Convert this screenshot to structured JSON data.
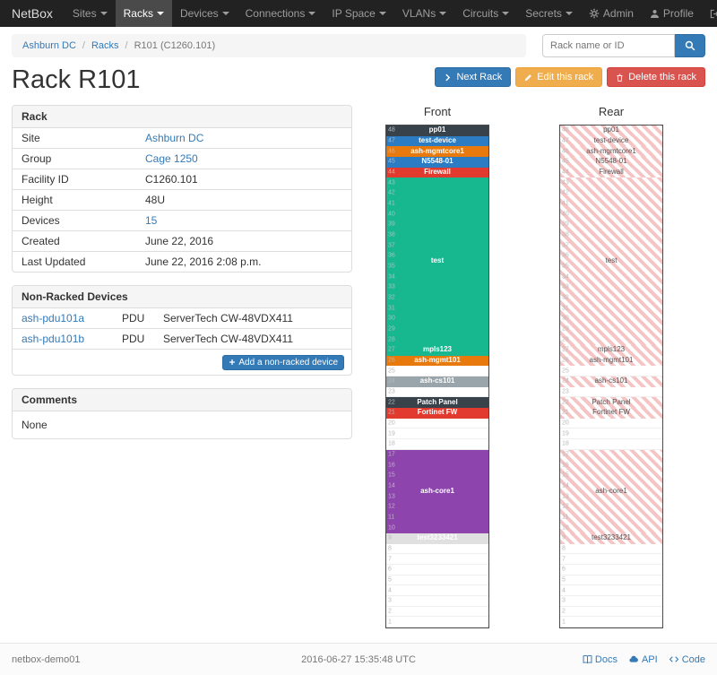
{
  "navbar": {
    "brand": "NetBox",
    "items": [
      {
        "label": "Sites"
      },
      {
        "label": "Racks",
        "active": true
      },
      {
        "label": "Devices"
      },
      {
        "label": "Connections"
      },
      {
        "label": "IP Space"
      },
      {
        "label": "VLANs"
      },
      {
        "label": "Circuits"
      },
      {
        "label": "Secrets"
      }
    ],
    "right_items": [
      {
        "label": "Admin",
        "icon": "gear"
      },
      {
        "label": "Profile",
        "icon": "user"
      },
      {
        "label": "Log out",
        "icon": "logout"
      }
    ]
  },
  "breadcrumb": [
    {
      "label": "Ashburn DC",
      "link": true
    },
    {
      "label": "Racks",
      "link": true
    },
    {
      "label": "R101 (C1260.101)",
      "link": false
    }
  ],
  "search": {
    "placeholder": "Rack name or ID"
  },
  "actions": {
    "next_rack": "Next Rack",
    "edit_rack": "Edit this rack",
    "delete_rack": "Delete this rack"
  },
  "page": {
    "title": "Rack R101"
  },
  "rack_info": {
    "title": "Rack",
    "rows": [
      {
        "label": "Site",
        "value": "Ashburn DC",
        "link": true
      },
      {
        "label": "Group",
        "value": "Cage 1250",
        "link": true
      },
      {
        "label": "Facility ID",
        "value": "C1260.101"
      },
      {
        "label": "Height",
        "value": "48U"
      },
      {
        "label": "Devices",
        "value": "15",
        "link": true
      },
      {
        "label": "Created",
        "value": "June 22, 2016"
      },
      {
        "label": "Last Updated",
        "value": "June 22, 2016 2:08 p.m."
      }
    ]
  },
  "non_racked": {
    "title": "Non-Racked Devices",
    "rows": [
      {
        "name": "ash-pdu101a",
        "type": "PDU",
        "model": "ServerTech CW-48VDX411"
      },
      {
        "name": "ash-pdu101b",
        "type": "PDU",
        "model": "ServerTech CW-48VDX411"
      }
    ],
    "add_button": "Add a non-racked device"
  },
  "comments": {
    "title": "Comments",
    "body": "None"
  },
  "elevation": {
    "front_title": "Front",
    "rear_title": "Rear",
    "units_total": 48,
    "devices": [
      {
        "top_u": 48,
        "span": 1,
        "label": "pp01",
        "color": "#38424b"
      },
      {
        "top_u": 47,
        "span": 1,
        "label": "test-device",
        "color": "#2c7cc4"
      },
      {
        "top_u": 46,
        "span": 1,
        "label": "ash-mgmtcore1",
        "color": "#e8790c"
      },
      {
        "top_u": 45,
        "span": 1,
        "label": "N5548-01",
        "color": "#2c7cc4"
      },
      {
        "top_u": 44,
        "span": 1,
        "label": "Firewall",
        "color": "#e23a2e"
      },
      {
        "top_u": 43,
        "span": 16,
        "label": "test",
        "color": "#17b890"
      },
      {
        "top_u": 27,
        "span": 1,
        "label": "mpls123",
        "color": "#17b890"
      },
      {
        "top_u": 26,
        "span": 1,
        "label": "ash-mgmt101",
        "color": "#e8790c"
      },
      {
        "top_u": 24,
        "span": 1,
        "label": "ash-cs101",
        "color": "#9aa5ab"
      },
      {
        "top_u": 22,
        "span": 1,
        "label": "Patch Panel",
        "color": "#38424b"
      },
      {
        "top_u": 21,
        "span": 1,
        "label": "Fortinet FW",
        "color": "#e23a2e"
      },
      {
        "top_u": 17,
        "span": 8,
        "label": "ash-core1",
        "color": "#8e44ad"
      },
      {
        "top_u": 9,
        "span": 1,
        "label": "test3233421",
        "color": "#e0e0e0",
        "text_color": "#ffffff"
      }
    ],
    "rear_stripe_color": "#f5c4c4",
    "rear_text_color": "#555555"
  },
  "footer": {
    "hostname": "netbox-demo01",
    "timestamp": "2016-06-27 15:35:48 UTC",
    "links": [
      {
        "label": "Docs",
        "icon": "book"
      },
      {
        "label": "API",
        "icon": "cloud"
      },
      {
        "label": "Code",
        "icon": "code"
      }
    ]
  }
}
